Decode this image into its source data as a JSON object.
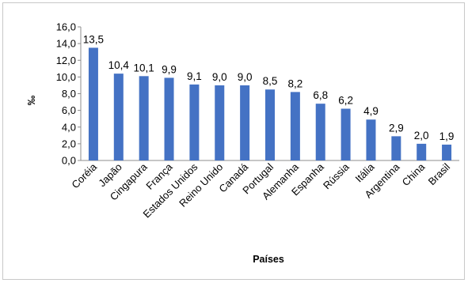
{
  "chart_data": {
    "type": "bar",
    "title": "",
    "xlabel": "Países",
    "ylabel": "‰",
    "ylim": [
      0,
      16
    ],
    "yticks": [
      0,
      2,
      4,
      6,
      8,
      10,
      12,
      14,
      16
    ],
    "ytick_labels": [
      "0,0",
      "2,0",
      "4,0",
      "6,0",
      "8,0",
      "10,0",
      "12,0",
      "14,0",
      "16,0"
    ],
    "grid": false,
    "legend": "none",
    "bar_color": "#4472C4",
    "categories": [
      "Coréia",
      "Japão",
      "Cingapura",
      "França",
      "Estados Unidos",
      "Reino Unido",
      "Canadá",
      "Portugal",
      "Alemanha",
      "Espanha",
      "Rússia",
      "Itália",
      "Argentina",
      "China",
      "Brasil"
    ],
    "values": [
      13.5,
      10.4,
      10.1,
      9.9,
      9.1,
      9.0,
      9.0,
      8.5,
      8.2,
      6.8,
      6.2,
      4.9,
      2.9,
      2.0,
      1.9
    ],
    "value_labels": [
      "13,5",
      "10,4",
      "10,1",
      "9,9",
      "9,1",
      "9,0",
      "9,0",
      "8,5",
      "8,2",
      "6,8",
      "6,2",
      "4,9",
      "2,9",
      "2,0",
      "1,9"
    ]
  }
}
